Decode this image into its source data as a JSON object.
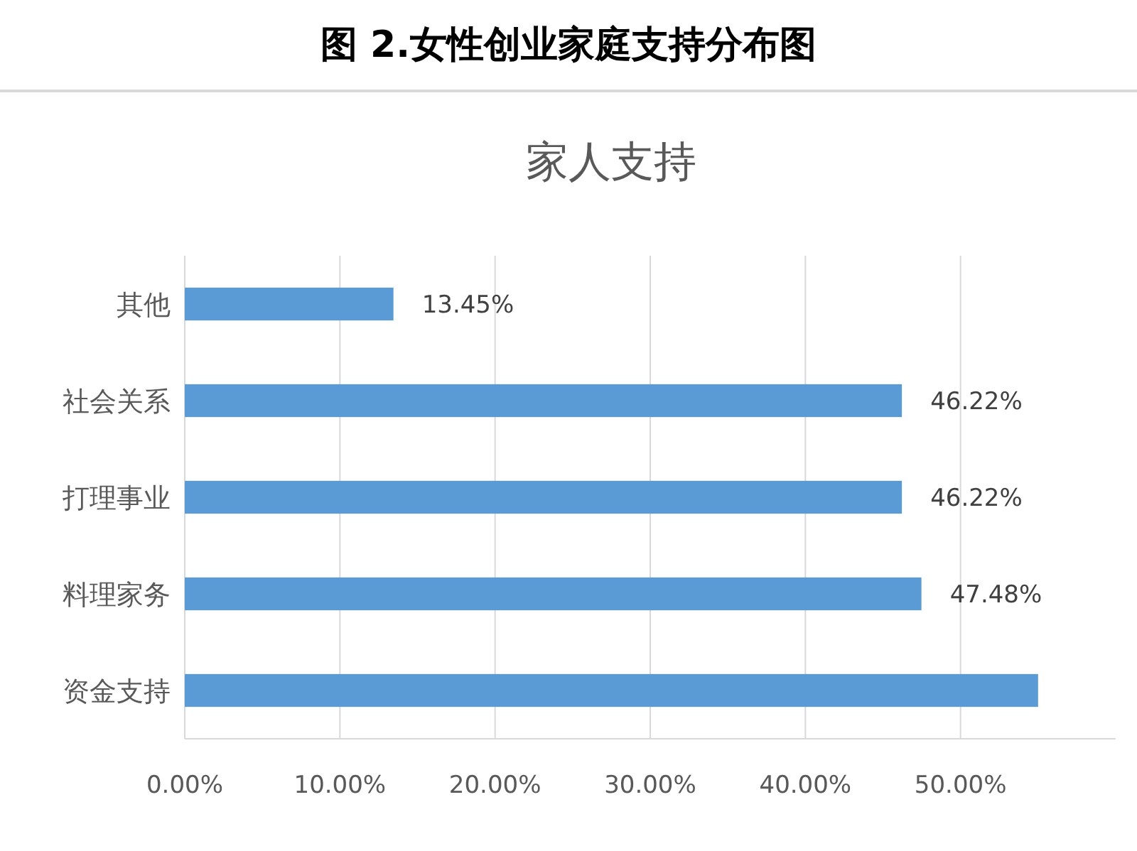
{
  "chart_data": {
    "type": "bar",
    "orientation": "horizontal",
    "title": "图 2.女性创业家庭支持分布图",
    "subtitle": "家人支持",
    "categories": [
      "其他",
      "社会关系",
      "打理事业",
      "料理家务",
      "资金支持"
    ],
    "values": [
      13.45,
      46.22,
      46.22,
      47.48,
      55
    ],
    "value_labels": [
      "13.45%",
      "46.22%",
      "46.22%",
      "47.48%",
      null
    ],
    "color": "#5b9bd5",
    "xlim": [
      0,
      60
    ],
    "xticks": [
      {
        "value": 0,
        "label": "0.00%"
      },
      {
        "value": 10,
        "label": "10.00%"
      },
      {
        "value": 20,
        "label": "20.00%"
      },
      {
        "value": 30,
        "label": "30.00%"
      },
      {
        "value": 40,
        "label": "40.00%"
      },
      {
        "value": 50,
        "label": "50.00%"
      }
    ],
    "grid": "x"
  }
}
